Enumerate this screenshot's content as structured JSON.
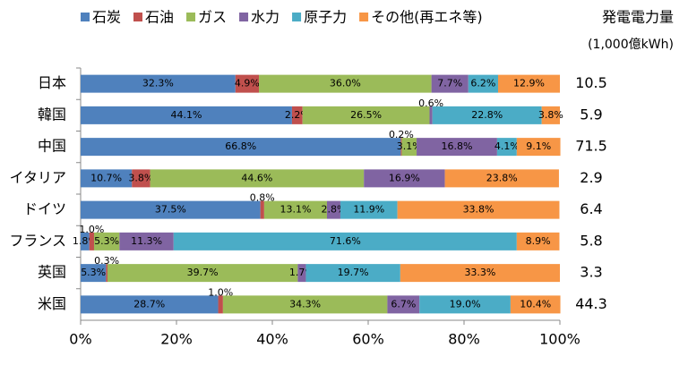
{
  "chart_data": {
    "type": "stacked-bar-100",
    "orientation": "horizontal",
    "total_title": "発電電力量",
    "total_unit": "(1,000億kWh)",
    "categories": [
      "日本",
      "韓国",
      "中国",
      "イタリア",
      "ドイツ",
      "フランス",
      "英国",
      "米国"
    ],
    "totals": [
      10.5,
      5.9,
      71.5,
      2.9,
      6.4,
      5.8,
      3.3,
      44.3
    ],
    "series": [
      {
        "name": "石炭",
        "color": "#4f81bd",
        "values": [
          32.3,
          44.1,
          66.8,
          10.7,
          37.5,
          1.8,
          5.3,
          28.7
        ],
        "value_labels": [
          "32.3%",
          "44.1%",
          "66.8%",
          "10.7%",
          "37.5%",
          "1.8%",
          "5.3%",
          "28.7%"
        ]
      },
      {
        "name": "石油",
        "color": "#c0504d",
        "values": [
          4.9,
          2.2,
          0.2,
          3.8,
          0.8,
          1.0,
          0.3,
          1.0
        ],
        "value_labels": [
          "4.9%",
          "2.2%",
          "0.2%",
          "3.8%",
          "0.8%",
          "1.0%",
          "0.3%",
          "1.0%"
        ]
      },
      {
        "name": "ガス",
        "color": "#9bbb59",
        "values": [
          36.0,
          26.5,
          3.1,
          44.6,
          13.1,
          5.3,
          39.7,
          34.3
        ],
        "value_labels": [
          "36.0%",
          "26.5%",
          "3.1%",
          "44.6%",
          "13.1%",
          "5.3%",
          "39.7%",
          "34.3%"
        ]
      },
      {
        "name": "水力",
        "color": "#8064a2",
        "values": [
          7.7,
          0.6,
          16.8,
          16.9,
          2.8,
          11.3,
          1.7,
          6.7
        ],
        "value_labels": [
          "7.7%",
          "0.6%",
          "16.8%",
          "16.9%",
          "2.8%",
          "11.3%",
          "1.7%",
          "6.7%"
        ]
      },
      {
        "name": "原子力",
        "color": "#4bacc6",
        "values": [
          6.2,
          22.8,
          4.1,
          null,
          11.9,
          71.6,
          19.7,
          19.0
        ],
        "value_labels": [
          "6.2%",
          "22.8%",
          "4.1%",
          null,
          "11.9%",
          "71.6%",
          "19.7%",
          "19.0%"
        ]
      },
      {
        "name": "その他(再エネ等)",
        "color": "#f79646",
        "values": [
          12.9,
          3.8,
          9.1,
          23.8,
          33.8,
          8.9,
          33.3,
          10.4
        ],
        "value_labels": [
          "12.9%",
          "3.8%",
          "9.1%",
          "23.8%",
          "33.8%",
          "8.9%",
          "33.3%",
          "10.4%"
        ]
      }
    ],
    "xlim": [
      0,
      100
    ],
    "xticks": [
      {
        "value": 0,
        "label": "0%"
      },
      {
        "value": 20,
        "label": "20%"
      },
      {
        "value": 40,
        "label": "40%"
      },
      {
        "value": 60,
        "label": "60%"
      },
      {
        "value": 80,
        "label": "80%"
      },
      {
        "value": 100,
        "label": "100%"
      }
    ],
    "grid": false,
    "legend": "top"
  }
}
